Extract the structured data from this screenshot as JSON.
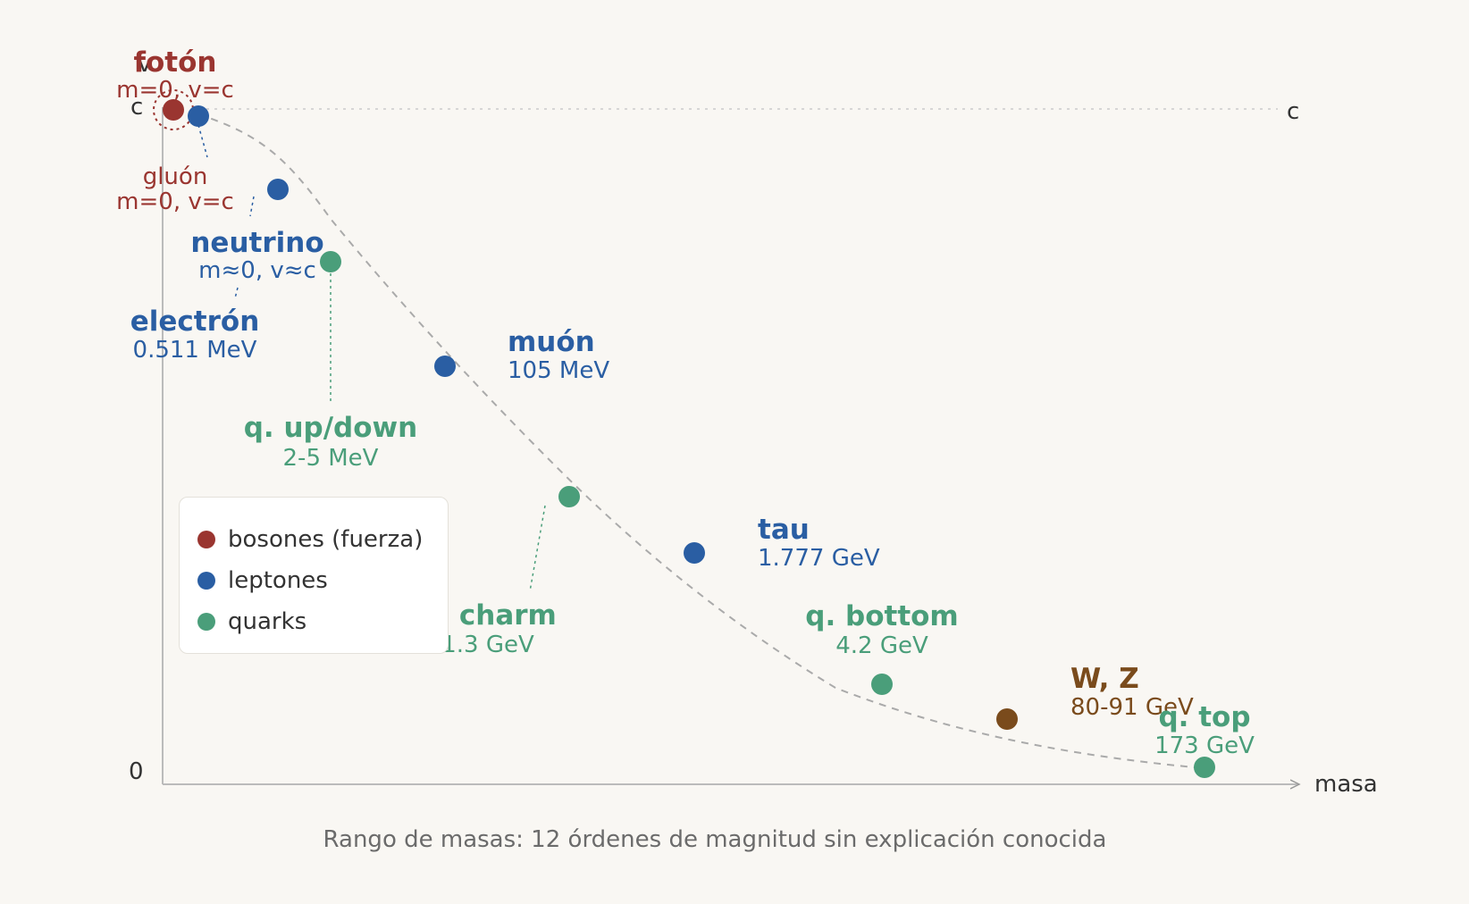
{
  "colors": {
    "bosons": "#9a3530",
    "leptons": "#2a5ea3",
    "quarks": "#4a9e7a",
    "wz": "#7a4b1c",
    "axis": "#bbbbbb",
    "curve": "#aaaaaa"
  },
  "axes": {
    "y_label": "v",
    "y_top": "c",
    "y_bottom": "0",
    "c_line_label": "c",
    "x_label": "masa"
  },
  "particles": [
    {
      "id": "foton",
      "group": "bosons",
      "name": "fotón",
      "sub": "m=0, v=c"
    },
    {
      "id": "gluon",
      "group": "bosons",
      "name": "gluón",
      "sub": "m=0, v=c"
    },
    {
      "id": "neutrino",
      "group": "leptons",
      "name": "neutrino",
      "sub": "m≈0, v≈c"
    },
    {
      "id": "electron",
      "group": "leptons",
      "name": "electrón",
      "sub": "0.511 MeV"
    },
    {
      "id": "updown",
      "group": "quarks",
      "name": "q. up/down",
      "sub": "2-5 MeV"
    },
    {
      "id": "muon",
      "group": "leptons",
      "name": "muón",
      "sub": "105 MeV"
    },
    {
      "id": "charm",
      "group": "quarks",
      "name": "q. charm",
      "sub": "1.3 GeV"
    },
    {
      "id": "tau",
      "group": "leptons",
      "name": "tau",
      "sub": "1.777 GeV"
    },
    {
      "id": "bottom",
      "group": "quarks",
      "name": "q. bottom",
      "sub": "4.2 GeV"
    },
    {
      "id": "wz",
      "group": "wz",
      "name": "W, Z",
      "sub": "80-91 GeV"
    },
    {
      "id": "top",
      "group": "quarks",
      "name": "q. top",
      "sub": "173 GeV"
    }
  ],
  "legend": [
    {
      "label": "bosones (fuerza)",
      "group": "bosons"
    },
    {
      "label": "leptones",
      "group": "leptons"
    },
    {
      "label": "quarks",
      "group": "quarks"
    }
  ],
  "caption": "Rango de masas: 12 órdenes de magnitud sin explicación conocida"
}
